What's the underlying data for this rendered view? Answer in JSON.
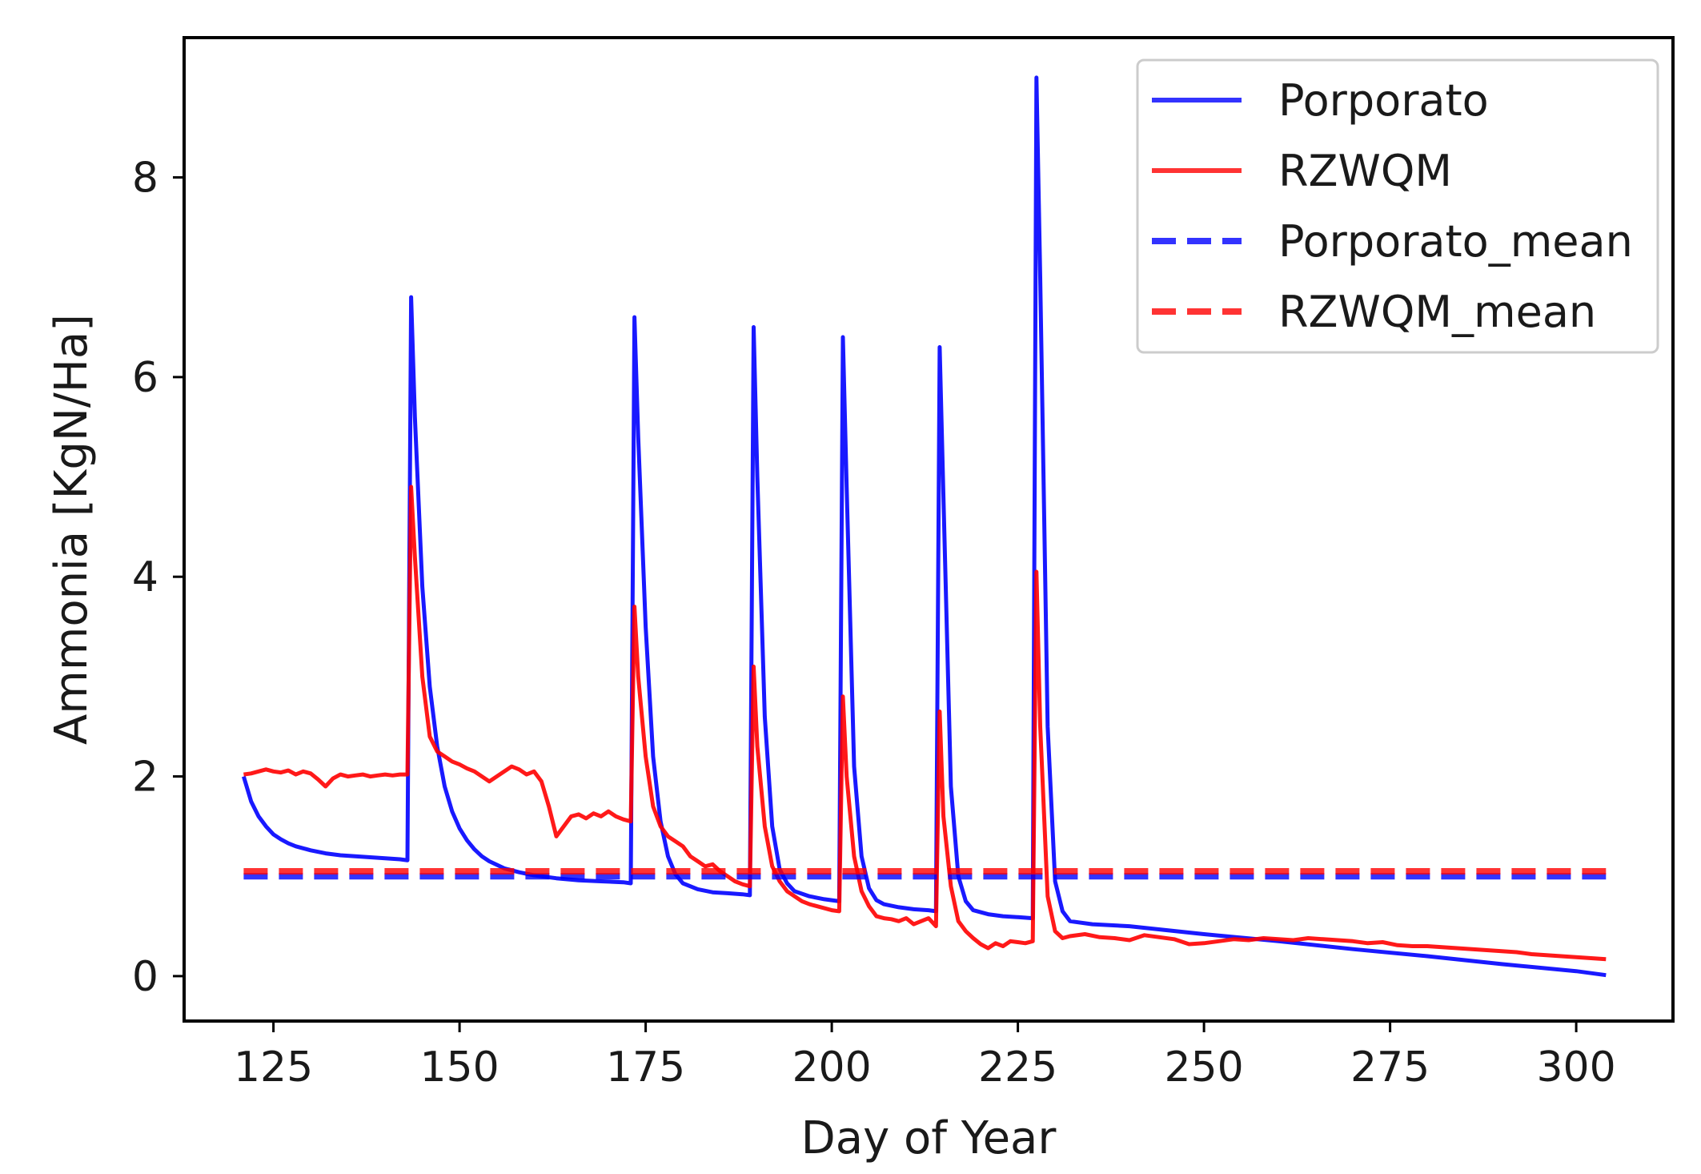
{
  "chart_data": {
    "type": "line",
    "title": "",
    "xlabel": "Day of Year",
    "ylabel": "Ammonia [KgN/Ha]",
    "xlim": [
      113,
      313
    ],
    "ylim": [
      -0.45,
      9.4
    ],
    "xticks": [
      125,
      150,
      175,
      200,
      225,
      250,
      275,
      300
    ],
    "yticks": [
      0,
      2,
      4,
      6,
      8
    ],
    "legend_position": "top-right",
    "series": [
      {
        "name": "Porporato",
        "color": "#0000ff",
        "style": "solid",
        "x": [
          121,
          122,
          123,
          124,
          125,
          126,
          127,
          128,
          129,
          130,
          132,
          134,
          136,
          138,
          140,
          142,
          143,
          143.5,
          144,
          145,
          146,
          147,
          148,
          149,
          150,
          151,
          152,
          153,
          154,
          156,
          158,
          160,
          163,
          166,
          169,
          172,
          173,
          173.5,
          174,
          175,
          176,
          177,
          178,
          179,
          180,
          182,
          184,
          186,
          188,
          189,
          189.5,
          190,
          191,
          192,
          193,
          194,
          195,
          197,
          199,
          201,
          201.5,
          202,
          203,
          204,
          205,
          206,
          207,
          209,
          211,
          213,
          214,
          214.5,
          215,
          216,
          217,
          218,
          219,
          221,
          223,
          225,
          227,
          227.5,
          228,
          229,
          230,
          231,
          232,
          235,
          240,
          250,
          260,
          270,
          280,
          290,
          300,
          304
        ],
        "values": [
          2.0,
          1.75,
          1.6,
          1.5,
          1.42,
          1.37,
          1.33,
          1.3,
          1.28,
          1.26,
          1.23,
          1.21,
          1.2,
          1.19,
          1.18,
          1.17,
          1.16,
          6.8,
          5.6,
          3.9,
          2.9,
          2.3,
          1.9,
          1.65,
          1.48,
          1.36,
          1.27,
          1.2,
          1.15,
          1.08,
          1.04,
          1.01,
          0.98,
          0.96,
          0.95,
          0.94,
          0.93,
          6.6,
          5.4,
          3.5,
          2.2,
          1.55,
          1.2,
          1.02,
          0.93,
          0.87,
          0.84,
          0.83,
          0.82,
          0.81,
          6.5,
          5.0,
          2.6,
          1.5,
          1.07,
          0.93,
          0.85,
          0.8,
          0.77,
          0.75,
          6.4,
          4.9,
          2.1,
          1.2,
          0.88,
          0.76,
          0.72,
          0.69,
          0.67,
          0.66,
          0.65,
          6.3,
          4.8,
          1.9,
          1.0,
          0.75,
          0.66,
          0.62,
          0.6,
          0.59,
          0.58,
          9.0,
          7.0,
          2.5,
          0.95,
          0.65,
          0.55,
          0.52,
          0.5,
          0.42,
          0.35,
          0.27,
          0.2,
          0.12,
          0.05,
          0.01
        ]
      },
      {
        "name": "RZWQM",
        "color": "#ff0000",
        "style": "solid",
        "x": [
          121,
          122,
          123,
          124,
          125,
          126,
          127,
          128,
          129,
          130,
          131,
          132,
          133,
          134,
          135,
          136,
          137,
          138,
          139,
          140,
          141,
          142,
          143,
          143.5,
          144,
          145,
          146,
          147,
          148,
          149,
          150,
          151,
          152,
          153,
          154,
          155,
          156,
          157,
          158,
          159,
          160,
          161,
          162,
          163,
          164,
          165,
          166,
          167,
          168,
          169,
          170,
          171,
          172,
          173,
          173.5,
          174,
          175,
          176,
          177,
          178,
          179,
          180,
          181,
          182,
          183,
          184,
          185,
          186,
          187,
          188,
          189,
          189.5,
          190,
          191,
          192,
          193,
          194,
          195,
          196,
          197,
          198,
          199,
          200,
          201,
          201.5,
          202,
          203,
          204,
          205,
          206,
          207,
          208,
          209,
          210,
          211,
          212,
          213,
          214,
          214.5,
          215,
          216,
          217,
          218,
          219,
          220,
          221,
          222,
          223,
          224,
          225,
          226,
          227,
          227.5,
          228,
          229,
          230,
          231,
          232,
          234,
          236,
          238,
          240,
          242,
          244,
          246,
          248,
          250,
          252,
          254,
          256,
          258,
          260,
          262,
          264,
          266,
          268,
          270,
          272,
          274,
          276,
          278,
          280,
          282,
          284,
          286,
          288,
          290,
          292,
          294,
          296,
          298,
          300,
          302,
          304
        ],
        "values": [
          2.02,
          2.03,
          2.05,
          2.07,
          2.05,
          2.04,
          2.06,
          2.02,
          2.05,
          2.03,
          1.97,
          1.9,
          1.98,
          2.02,
          2.0,
          2.01,
          2.02,
          2.0,
          2.01,
          2.02,
          2.01,
          2.02,
          2.02,
          4.9,
          4.2,
          3.0,
          2.4,
          2.25,
          2.2,
          2.15,
          2.12,
          2.08,
          2.05,
          2.0,
          1.95,
          2.0,
          2.05,
          2.1,
          2.07,
          2.02,
          2.05,
          1.95,
          1.7,
          1.4,
          1.5,
          1.6,
          1.62,
          1.58,
          1.63,
          1.6,
          1.65,
          1.6,
          1.57,
          1.55,
          3.7,
          3.0,
          2.2,
          1.7,
          1.5,
          1.4,
          1.35,
          1.3,
          1.2,
          1.15,
          1.1,
          1.12,
          1.05,
          1.0,
          0.95,
          0.92,
          0.9,
          3.1,
          2.3,
          1.5,
          1.1,
          0.95,
          0.85,
          0.8,
          0.75,
          0.72,
          0.7,
          0.68,
          0.66,
          0.65,
          2.8,
          2.0,
          1.2,
          0.85,
          0.7,
          0.6,
          0.58,
          0.57,
          0.55,
          0.58,
          0.52,
          0.55,
          0.58,
          0.5,
          2.65,
          1.6,
          0.9,
          0.55,
          0.45,
          0.38,
          0.32,
          0.28,
          0.33,
          0.3,
          0.35,
          0.34,
          0.33,
          0.35,
          4.05,
          2.5,
          0.8,
          0.45,
          0.38,
          0.4,
          0.42,
          0.39,
          0.38,
          0.36,
          0.41,
          0.39,
          0.37,
          0.32,
          0.33,
          0.35,
          0.37,
          0.36,
          0.38,
          0.37,
          0.36,
          0.38,
          0.37,
          0.36,
          0.35,
          0.33,
          0.34,
          0.31,
          0.3,
          0.3,
          0.29,
          0.28,
          0.27,
          0.26,
          0.25,
          0.24,
          0.22,
          0.21,
          0.2,
          0.19,
          0.18,
          0.17
        ]
      },
      {
        "name": "Porporato_mean",
        "color": "#0000ff",
        "style": "dashed",
        "x": [
          121,
          304
        ],
        "values": [
          1.0,
          1.0
        ]
      },
      {
        "name": "RZWQM_mean",
        "color": "#ff0000",
        "style": "dashed",
        "x": [
          121,
          304
        ],
        "values": [
          1.05,
          1.05
        ]
      }
    ]
  }
}
